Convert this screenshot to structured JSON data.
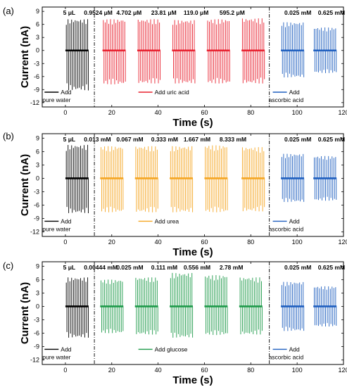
{
  "chart_data": [
    {
      "type": "line",
      "panel": "(a)",
      "ylabel": "Current (nA)",
      "xlabel": "Time (s)",
      "xlim": [
        -10,
        120
      ],
      "ylim": [
        -13,
        10
      ],
      "xticks": [
        0,
        20,
        40,
        60,
        80,
        100,
        120
      ],
      "yticks": [
        -12,
        -9,
        -6,
        -3,
        0,
        3,
        6,
        9
      ],
      "dividers_x": [
        12.5,
        88
      ],
      "annotations": [
        "5 μL",
        "0.9524 μM",
        "4.702 μM",
        "23.81 μM",
        "119.0 μM",
        "595.2 μM",
        "0.025 mM",
        "0.625 mM"
      ],
      "legends": [
        {
          "line1": "Add",
          "line2": "pure water",
          "color": "#000000"
        },
        {
          "line1": "Add uric acid",
          "line2": "",
          "color": "#e8212f"
        },
        {
          "line1": "Add",
          "line2": "ascorbic acid",
          "color": "#1f5fbf"
        }
      ],
      "series": [
        {
          "color": "#000000",
          "x_start": 0,
          "x_end": 10,
          "peak_pos": 7.2,
          "peak_neg": -9.2
        },
        {
          "color": "#e8212f",
          "x_start": 16,
          "x_end": 26,
          "peak_pos": 7.2,
          "peak_neg": -7.8
        },
        {
          "color": "#e8212f",
          "x_start": 31,
          "x_end": 41,
          "peak_pos": 7.2,
          "peak_neg": -7.6
        },
        {
          "color": "#e8212f",
          "x_start": 46,
          "x_end": 56,
          "peak_pos": 7.0,
          "peak_neg": -7.6
        },
        {
          "color": "#e8212f",
          "x_start": 61,
          "x_end": 71,
          "peak_pos": 7.2,
          "peak_neg": -7.6
        },
        {
          "color": "#e8212f",
          "x_start": 76,
          "x_end": 86,
          "peak_pos": 7.4,
          "peak_neg": -7.6
        },
        {
          "color": "#1f5fbf",
          "x_start": 93,
          "x_end": 103,
          "peak_pos": 6.5,
          "peak_neg": -6.2
        },
        {
          "color": "#1f5fbf",
          "x_start": 107,
          "x_end": 117,
          "peak_pos": 5.3,
          "peak_neg": -5.2
        }
      ]
    },
    {
      "type": "line",
      "panel": "(b)",
      "ylabel": "Current (nA)",
      "xlabel": "Time (s)",
      "xlim": [
        -10,
        120
      ],
      "ylim": [
        -13,
        10
      ],
      "xticks": [
        0,
        20,
        40,
        60,
        80,
        100,
        120
      ],
      "yticks": [
        -12,
        -9,
        -6,
        -3,
        0,
        3,
        6,
        9
      ],
      "dividers_x": [
        12.5,
        88
      ],
      "annotations": [
        "5 μL",
        "0.013 mM",
        "0.067 mM",
        "0.333 mM",
        "1.667 mM",
        "8.333 mM",
        "0.025 mM",
        "0.625 mM"
      ],
      "legends": [
        {
          "line1": "Add",
          "line2": "pure water",
          "color": "#000000"
        },
        {
          "line1": "Add urea",
          "line2": "",
          "color": "#f5a623"
        },
        {
          "line1": "Add",
          "line2": "ascorbic acid",
          "color": "#1f5fbf"
        }
      ],
      "series": [
        {
          "color": "#000000",
          "x_start": 0,
          "x_end": 10,
          "peak_pos": 7.5,
          "peak_neg": -7.8
        },
        {
          "color": "#f5a623",
          "x_start": 15,
          "x_end": 25,
          "peak_pos": 7.2,
          "peak_neg": -7.6
        },
        {
          "color": "#f5a623",
          "x_start": 30,
          "x_end": 40,
          "peak_pos": 7.2,
          "peak_neg": -7.6
        },
        {
          "color": "#f5a623",
          "x_start": 45,
          "x_end": 55,
          "peak_pos": 7.2,
          "peak_neg": -7.6
        },
        {
          "color": "#f5a623",
          "x_start": 60,
          "x_end": 70,
          "peak_pos": 7.4,
          "peak_neg": -7.6
        },
        {
          "color": "#f5a623",
          "x_start": 76,
          "x_end": 86,
          "peak_pos": 7.0,
          "peak_neg": -7.4
        },
        {
          "color": "#1f5fbf",
          "x_start": 93,
          "x_end": 103,
          "peak_pos": 5.5,
          "peak_neg": -5.3
        },
        {
          "color": "#1f5fbf",
          "x_start": 107,
          "x_end": 117,
          "peak_pos": 5.0,
          "peak_neg": -5.0
        }
      ]
    },
    {
      "type": "line",
      "panel": "(c)",
      "ylabel": "Current (nA)",
      "xlabel": "Time (s)",
      "xlim": [
        -10,
        120
      ],
      "ylim": [
        -13,
        10
      ],
      "xticks": [
        0,
        20,
        40,
        60,
        80,
        100,
        120
      ],
      "yticks": [
        -12,
        -9,
        -6,
        -3,
        0,
        3,
        6,
        9
      ],
      "dividers_x": [
        12.5,
        88
      ],
      "annotations": [
        "5 μL",
        "0.00444 mM",
        "0.025 mM",
        "0.111 mM",
        "0.556 mM",
        "2.78 mM",
        "0.025 mM",
        "0.625 mM"
      ],
      "legends": [
        {
          "line1": "Add",
          "line2": "pure water",
          "color": "#000000"
        },
        {
          "line1": "Add glucose",
          "line2": "",
          "color": "#1e9a4a"
        },
        {
          "line1": "Add",
          "line2": "ascorbic acid",
          "color": "#1f5fbf"
        }
      ],
      "series": [
        {
          "color": "#000000",
          "x_start": 0,
          "x_end": 10,
          "peak_pos": 6.5,
          "peak_neg": -7.0
        },
        {
          "color": "#1e9a4a",
          "x_start": 15,
          "x_end": 25,
          "peak_pos": 6.0,
          "peak_neg": -6.0
        },
        {
          "color": "#1e9a4a",
          "x_start": 30,
          "x_end": 40,
          "peak_pos": 6.5,
          "peak_neg": -6.3
        },
        {
          "color": "#1e9a4a",
          "x_start": 45,
          "x_end": 55,
          "peak_pos": 7.5,
          "peak_neg": -7.0
        },
        {
          "color": "#1e9a4a",
          "x_start": 60,
          "x_end": 70,
          "peak_pos": 7.0,
          "peak_neg": -6.4
        },
        {
          "color": "#1e9a4a",
          "x_start": 75,
          "x_end": 85,
          "peak_pos": 6.5,
          "peak_neg": -6.3
        },
        {
          "color": "#1f5fbf",
          "x_start": 93,
          "x_end": 103,
          "peak_pos": 5.5,
          "peak_neg": -5.5
        },
        {
          "color": "#1f5fbf",
          "x_start": 107,
          "x_end": 117,
          "peak_pos": 4.5,
          "peak_neg": -4.5
        }
      ]
    }
  ]
}
